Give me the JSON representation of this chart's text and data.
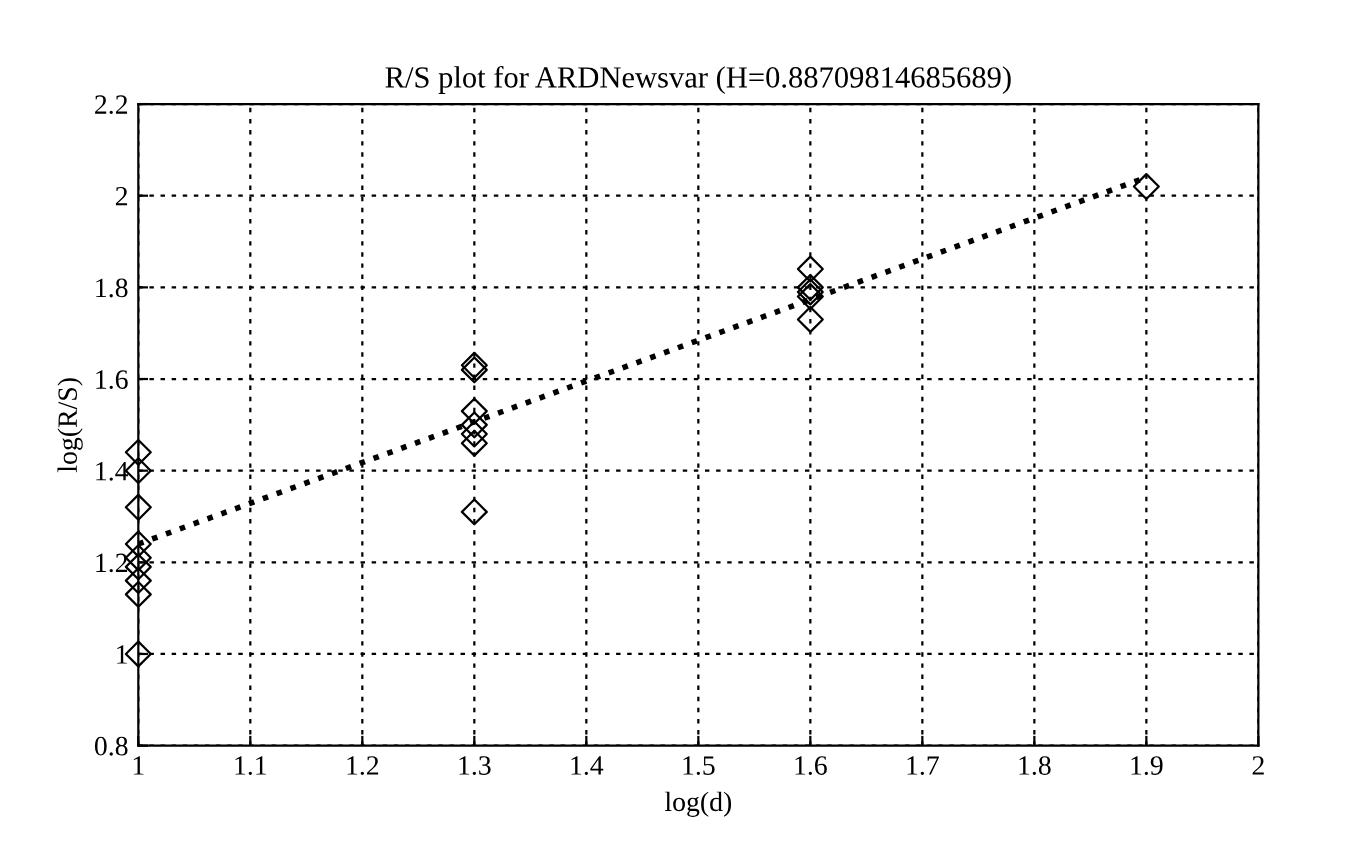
{
  "chart_data": {
    "type": "scatter",
    "title": "R/S plot for ARDNewsvar (H=0.88709814685689)",
    "xlabel": "log(d)",
    "ylabel": "log(R/S)",
    "xlim": [
      1,
      2
    ],
    "xticks": [
      1,
      1.1,
      1.2,
      1.3,
      1.4,
      1.5,
      1.6,
      1.7,
      1.8,
      1.9,
      2
    ],
    "ylim": [
      0.8,
      2.2
    ],
    "yticks": [
      0.8,
      1,
      1.2,
      1.4,
      1.6,
      1.8,
      2,
      2.2
    ],
    "grid": true,
    "marker": "diamond",
    "series": [
      {
        "color": "#000000",
        "x": [
          1,
          1,
          1,
          1,
          1,
          1,
          1,
          1,
          1,
          1.3,
          1.3,
          1.3,
          1.3,
          1.3,
          1.3,
          1.3,
          1.6,
          1.6,
          1.6,
          1.6,
          1.6,
          1.9
        ],
        "values": [
          1.44,
          1.4,
          1.32,
          1.24,
          1.21,
          1.19,
          1.16,
          1.13,
          1.0,
          1.63,
          1.62,
          1.53,
          1.5,
          1.48,
          1.46,
          1.31,
          1.84,
          1.8,
          1.79,
          1.78,
          1.73,
          2.02
        ]
      },
      {
        "type": "line",
        "color": "#000000",
        "line_style": "dotted",
        "marker": "none",
        "x": [
          1,
          1.9
        ],
        "values": [
          1.24,
          2.04
        ]
      }
    ]
  }
}
